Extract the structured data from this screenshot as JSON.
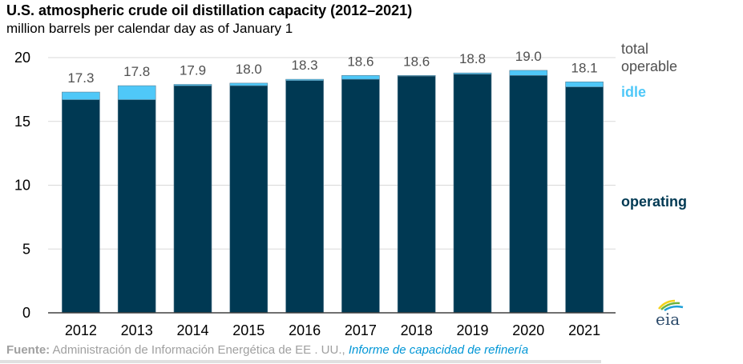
{
  "chart_data": {
    "type": "bar",
    "stacked": true,
    "title": "U.S. atmospheric crude oil distillation capacity (2012–2021)",
    "subtitle": "million barrels per calendar day as of January 1",
    "xlabel": "",
    "ylabel": "",
    "ylim": [
      0,
      20
    ],
    "yticks": [
      "0",
      "5",
      "10",
      "15",
      "20"
    ],
    "ytick_values": [
      0,
      5,
      10,
      15,
      20
    ],
    "grid": true,
    "categories": [
      "2012",
      "2013",
      "2014",
      "2015",
      "2016",
      "2017",
      "2018",
      "2019",
      "2020",
      "2021"
    ],
    "series": [
      {
        "name": "operating",
        "color": "#003953",
        "values": [
          16.7,
          16.7,
          17.8,
          17.8,
          18.2,
          18.3,
          18.55,
          18.7,
          18.6,
          17.7
        ]
      },
      {
        "name": "idle",
        "color": "#4fc8f8",
        "values": [
          0.6,
          1.1,
          0.1,
          0.2,
          0.1,
          0.3,
          0.05,
          0.1,
          0.4,
          0.4
        ]
      }
    ],
    "totals": [
      17.3,
      17.8,
      17.9,
      18.0,
      18.3,
      18.6,
      18.6,
      18.8,
      19.0,
      18.1
    ],
    "total_labels": [
      "17.3",
      "17.8",
      "17.9",
      "18.0",
      "18.3",
      "18.6",
      "18.6",
      "18.8",
      "19.0",
      "18.1"
    ],
    "legend": {
      "placement": "right",
      "total_line1": "total",
      "total_line2": "operable",
      "idle": "idle",
      "operating": "operating"
    }
  },
  "source": {
    "label": "Fuente:",
    "text": " Administración de Información Energética de EE . UU.,",
    "link": "Informe de capacidad de refinería"
  },
  "logo": {
    "text": "eia"
  }
}
